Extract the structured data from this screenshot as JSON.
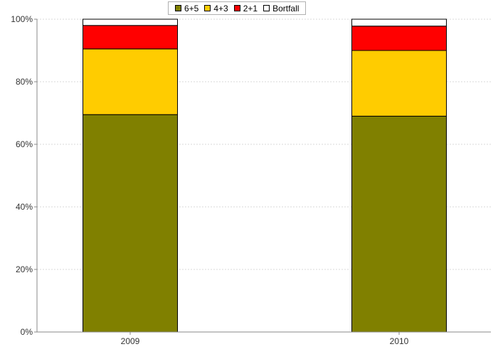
{
  "chart_data": {
    "type": "bar",
    "stacked": true,
    "categories": [
      "2009",
      "2010"
    ],
    "series": [
      {
        "name": "6+5",
        "color": "#808000",
        "values": [
          69.5,
          69.0
        ]
      },
      {
        "name": "4+3",
        "color": "#FFCC00",
        "values": [
          21.0,
          21.0
        ]
      },
      {
        "name": "2+1",
        "color": "#FF0000",
        "values": [
          7.5,
          7.8
        ]
      },
      {
        "name": "Bortfall",
        "color": "#FFFFFF",
        "values": [
          2.0,
          2.2
        ]
      }
    ],
    "ylim": [
      0,
      100
    ],
    "y_ticks": [
      0,
      20,
      40,
      60,
      80,
      100
    ],
    "y_tick_suffix": "%",
    "grid": true,
    "legend_position": "top-center",
    "title": "",
    "xlabel": "",
    "ylabel": ""
  }
}
